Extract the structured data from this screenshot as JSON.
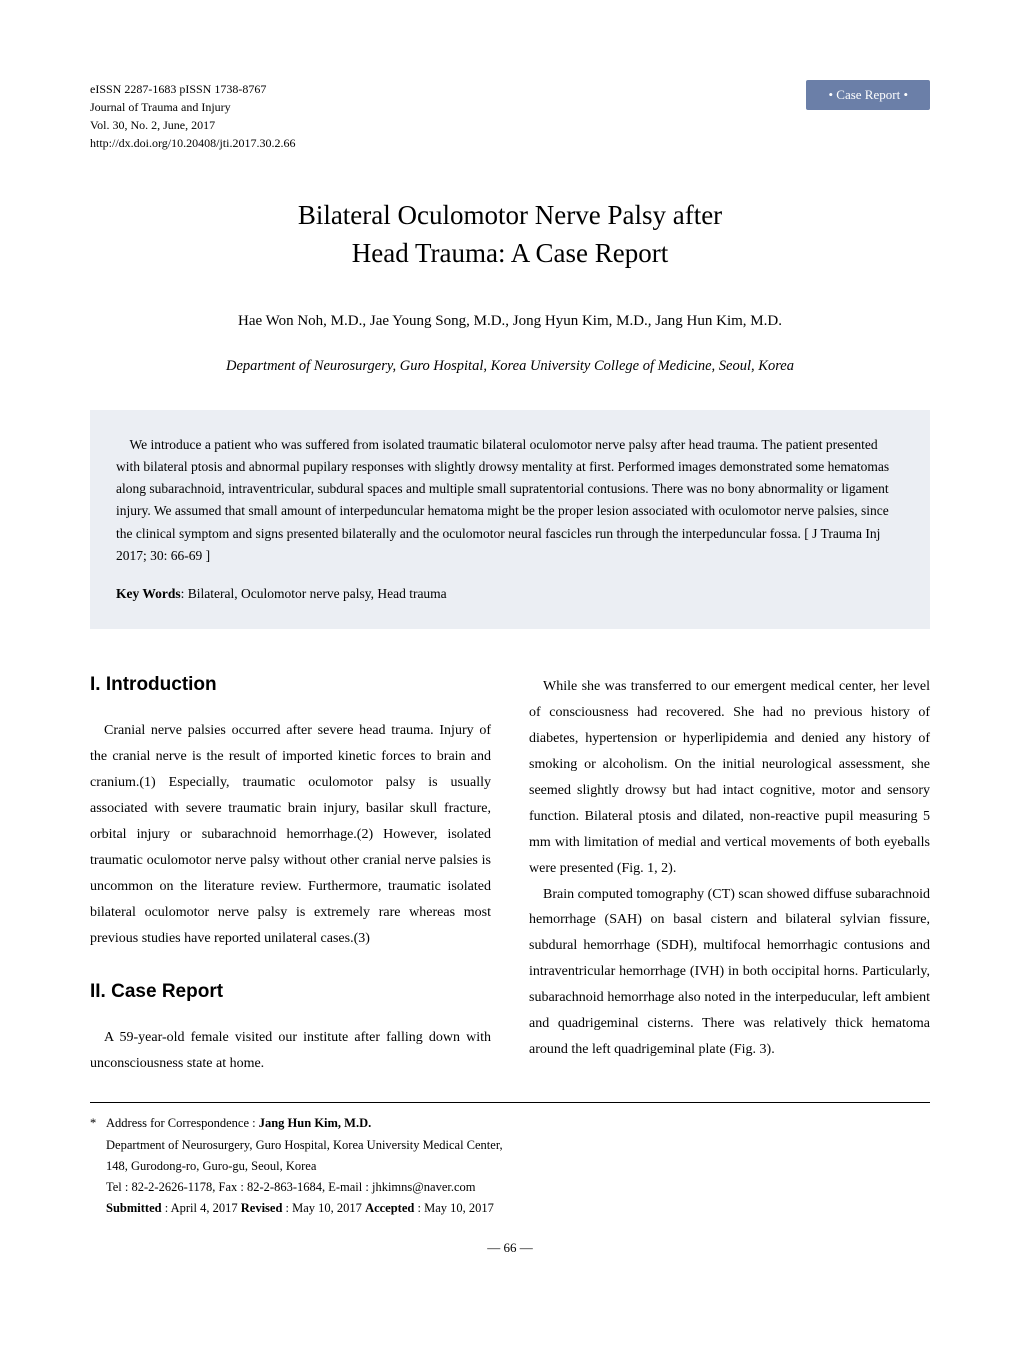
{
  "journal": {
    "issn": "eISSN 2287-1683  pISSN 1738-8767",
    "name": "Journal of Trauma and Injury",
    "vol": "Vol. 30, No. 2, June, 2017",
    "doi": "http://dx.doi.org/10.20408/jti.2017.30.2.66"
  },
  "badge": "• Case Report •",
  "title": "Bilateral Oculomotor Nerve Palsy after\nHead Trauma: A Case Report",
  "title_line1": "Bilateral Oculomotor Nerve Palsy after",
  "title_line2": "Head Trauma: A Case Report",
  "authors": "Hae Won Noh, M.D., Jae Young Song, M.D., Jong Hyun Kim, M.D., Jang Hun Kim, M.D.",
  "dept": "Department of Neurosurgery, Guro Hospital, Korea University College of Medicine, Seoul, Korea",
  "abstract": "We introduce a patient who was suffered from isolated traumatic bilateral oculomotor nerve palsy after head trauma. The patient presented with bilateral ptosis and abnormal pupilary responses with slightly drowsy mentality at first. Performed images demonstrated some hematomas along subarachnoid, intraventricular, subdural spaces and multiple small supratentorial contusions. There was no bony abnormality or ligament injury. We assumed that small amount of interpeduncular hematoma might be the proper lesion associated with oculomotor nerve palsies, since the clinical symptom and signs presented bilaterally and the oculomotor neural fascicles run through the interpeduncular fossa. [ J Trauma Inj 2017; 30: 66-69 ]",
  "keywords_label": "Key Words",
  "keywords": ": Bilateral, Oculomotor nerve palsy, Head trauma",
  "sections": {
    "intro_head": "I. Introduction",
    "intro_p1": "Cranial nerve palsies occurred after severe head trauma. Injury of the cranial nerve is the result of imported kinetic forces to brain and cranium.(1) Especially, traumatic oculomotor palsy is usually associated with severe traumatic brain injury, basilar skull fracture, orbital injury or subarachnoid hemorrhage.(2) However, isolated traumatic oculomotor nerve palsy without other cranial nerve palsies is uncommon on the literature review. Furthermore, traumatic isolated bilateral oculomotor nerve palsy is extremely rare whereas most previous studies have reported unilateral cases.(3)",
    "case_head": "II. Case Report",
    "case_p1": "A 59-year-old female visited our institute after falling down with unconsciousness state at home.",
    "right_p1": "While she was transferred to our emergent medical center, her level of consciousness had recovered. She had no previous history of diabetes, hypertension or hyperlipidemia and denied any history of smoking or alcoholism. On the initial neurological assessment, she seemed slightly drowsy but had intact cognitive, motor and sensory function. Bilateral ptosis and dilated, non-reactive pupil measuring 5 mm with limitation of medial and vertical movements of both eyeballs were presented (Fig. 1, 2).",
    "right_p2": "Brain computed tomography (CT) scan showed diffuse subarachnoid hemorrhage (SAH) on basal cistern and bilateral sylvian fissure, subdural hemorrhage (SDH), multifocal hemorrhagic contusions and intraventricular hemorrhage (IVH) in both occipital horns. Particularly, subarachnoid hemorrhage also noted in the interpeducular, left ambient and quadrigeminal cisterns. There was relatively thick hematoma around the left quadrigeminal plate (Fig. 3)."
  },
  "correspondence": {
    "label": "Address for Correspondence : ",
    "name": "Jang Hun Kim, M.D.",
    "dept": "Department of Neurosurgery, Guro Hospital, Korea University Medical Center,",
    "addr": "148, Gurodong-ro, Guro-gu, Seoul, Korea",
    "contact": "Tel : 82-2-2626-1178,  Fax : 82-2-863-1684,  E-mail : jhkimns@naver.com",
    "submitted_label": "Submitted",
    "submitted": " : April 4, 2017    ",
    "revised_label": "Revised",
    "revised": " : May 10, 2017    ",
    "accepted_label": "Accepted",
    "accepted": " : May 10, 2017"
  },
  "pagenum": "— 66 —",
  "colors": {
    "badge_bg": "#6b7fa8",
    "abstract_bg": "#ebeef3"
  }
}
